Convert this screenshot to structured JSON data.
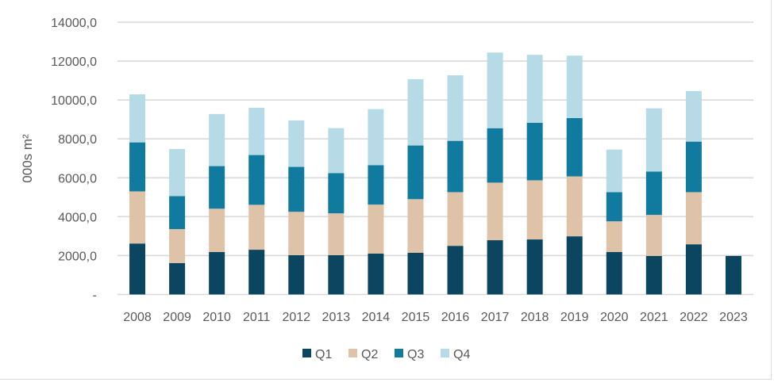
{
  "chart_data": {
    "type": "bar",
    "stacked": true,
    "title": "",
    "xlabel": "",
    "ylabel": "000s m²",
    "ylim": [
      0,
      14000
    ],
    "yticks": [
      0,
      2000,
      4000,
      6000,
      8000,
      10000,
      12000,
      14000
    ],
    "ytick_labels": [
      "-",
      "2000,0",
      "4000,0",
      "6000,0",
      "8000,0",
      "10000,0",
      "12000,0",
      "14000,0"
    ],
    "grid": true,
    "legend_position": "bottom",
    "categories": [
      "2008",
      "2009",
      "2010",
      "2011",
      "2012",
      "2013",
      "2014",
      "2015",
      "2016",
      "2017",
      "2018",
      "2019",
      "2020",
      "2021",
      "2022",
      "2023"
    ],
    "series": [
      {
        "name": "Q1",
        "color": "#0b4560",
        "values": [
          2620,
          1610,
          2180,
          2300,
          2020,
          2020,
          2100,
          2140,
          2500,
          2790,
          2830,
          2990,
          2180,
          1980,
          2580,
          1980
        ]
      },
      {
        "name": "Q2",
        "color": "#dfc3a8",
        "values": [
          2680,
          1750,
          2230,
          2310,
          2230,
          2150,
          2520,
          2760,
          2760,
          2960,
          3040,
          3080,
          1580,
          2110,
          2680,
          null
        ]
      },
      {
        "name": "Q3",
        "color": "#117a9f",
        "values": [
          2520,
          1700,
          2190,
          2560,
          2310,
          2070,
          2030,
          2760,
          2640,
          2800,
          2960,
          3000,
          1500,
          2230,
          2600,
          null
        ]
      },
      {
        "name": "Q4",
        "color": "#b7dbe6",
        "values": [
          2470,
          2420,
          2680,
          2430,
          2390,
          2310,
          2880,
          3410,
          3370,
          3890,
          3490,
          3210,
          2190,
          3250,
          2600,
          null
        ]
      }
    ]
  },
  "colors": {
    "gridline": "#d9d9d9",
    "text": "#595959"
  }
}
